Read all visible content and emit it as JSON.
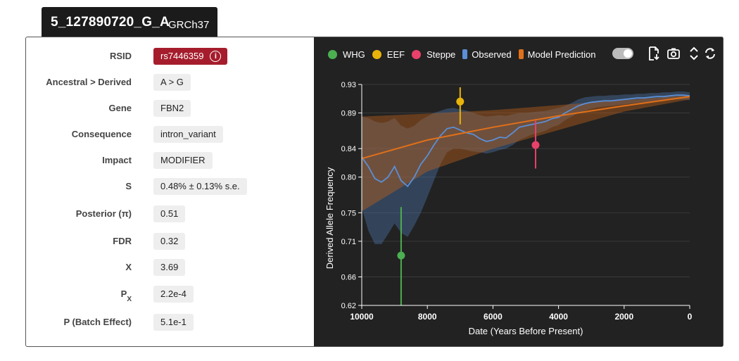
{
  "header": {
    "variant": "5_127890720_G_A",
    "build": "GRCh37"
  },
  "info": [
    {
      "label": "RSID",
      "value": "rs7446359"
    },
    {
      "label": "Ancestral > Derived",
      "value": "A > G"
    },
    {
      "label": "Gene",
      "value": "FBN2"
    },
    {
      "label": "Consequence",
      "value": "intron_variant"
    },
    {
      "label": "Impact",
      "value": "MODIFIER"
    },
    {
      "label": "S",
      "value": "0.48% ± 0.13% s.e."
    },
    {
      "label": "Posterior (π)",
      "value": "0.51"
    },
    {
      "label": "FDR",
      "value": "0.32"
    },
    {
      "label": "X",
      "value": "3.69"
    },
    {
      "label": "P",
      "label_sub": "X",
      "value": "2.2e-4"
    },
    {
      "label": "P (Batch Effect)",
      "value": "5.1e-1"
    }
  ],
  "info_icon": "info-circle-icon",
  "legend": [
    {
      "name": "WHG",
      "color": "#4caf50",
      "shape": "dot"
    },
    {
      "name": "EEF",
      "color": "#e8b40b",
      "shape": "dot"
    },
    {
      "name": "Steppe",
      "color": "#e8416a",
      "shape": "dot"
    },
    {
      "name": "Observed",
      "color": "#5b8fd6",
      "shape": "bar"
    },
    {
      "name": "Model Prediction",
      "color": "#e0701a",
      "shape": "bar"
    }
  ],
  "toolbar": [
    "download-data-icon",
    "camera-icon",
    "expand-vertical-icon",
    "refresh-icon"
  ],
  "chart_data": {
    "type": "line",
    "xlabel": "Date (Years Before Present)",
    "ylabel": "Derived Allele Frequency",
    "xlim": [
      10000,
      0
    ],
    "ylim": [
      0.62,
      0.93
    ],
    "xticks": [
      10000,
      8000,
      6000,
      4000,
      2000,
      0
    ],
    "xtick_labels": [
      "10000",
      "8000",
      "6000",
      "4000",
      "2000",
      "0"
    ],
    "yticks": [
      0.62,
      0.66,
      0.71,
      0.75,
      0.8,
      0.84,
      0.89,
      0.93
    ],
    "ytick_labels": [
      "0.62",
      "0.66",
      "0.71",
      "0.75",
      "0.80",
      "0.84",
      "0.89",
      "0.93"
    ],
    "observed": {
      "x": [
        10000,
        9800,
        9600,
        9400,
        9200,
        9000,
        8800,
        8600,
        8400,
        8200,
        8000,
        7800,
        7600,
        7400,
        7200,
        7000,
        6800,
        6600,
        6400,
        6200,
        6000,
        5800,
        5600,
        5400,
        5200,
        5000,
        4800,
        4600,
        4400,
        4200,
        4000,
        3800,
        3600,
        3400,
        3200,
        3000,
        2800,
        2600,
        2400,
        2200,
        2000,
        1800,
        1600,
        1400,
        1200,
        1000,
        800,
        600,
        400,
        200,
        0
      ],
      "y": [
        0.828,
        0.815,
        0.798,
        0.793,
        0.8,
        0.815,
        0.795,
        0.787,
        0.8,
        0.818,
        0.83,
        0.845,
        0.858,
        0.868,
        0.87,
        0.866,
        0.862,
        0.86,
        0.854,
        0.85,
        0.852,
        0.856,
        0.855,
        0.862,
        0.87,
        0.872,
        0.874,
        0.876,
        0.878,
        0.882,
        0.884,
        0.89,
        0.895,
        0.9,
        0.903,
        0.905,
        0.906,
        0.907,
        0.907,
        0.908,
        0.909,
        0.91,
        0.911,
        0.911,
        0.912,
        0.913,
        0.913,
        0.914,
        0.915,
        0.915,
        0.914
      ],
      "lower": [
        0.757,
        0.725,
        0.706,
        0.706,
        0.72,
        0.735,
        0.722,
        0.716,
        0.732,
        0.75,
        0.772,
        0.795,
        0.818,
        0.835,
        0.84,
        0.84,
        0.838,
        0.836,
        0.835,
        0.833,
        0.835,
        0.838,
        0.84,
        0.845,
        0.852,
        0.856,
        0.86,
        0.862,
        0.865,
        0.87,
        0.873,
        0.88,
        0.885,
        0.89,
        0.893,
        0.896,
        0.898,
        0.899,
        0.9,
        0.901,
        0.902,
        0.903,
        0.904,
        0.905,
        0.906,
        0.907,
        0.907,
        0.908,
        0.909,
        0.909,
        0.908
      ],
      "upper": [
        0.885,
        0.883,
        0.878,
        0.876,
        0.878,
        0.883,
        0.872,
        0.868,
        0.872,
        0.88,
        0.885,
        0.89,
        0.893,
        0.896,
        0.897,
        0.895,
        0.893,
        0.89,
        0.887,
        0.885,
        0.886,
        0.887,
        0.886,
        0.888,
        0.89,
        0.89,
        0.891,
        0.892,
        0.893,
        0.895,
        0.897,
        0.9,
        0.904,
        0.909,
        0.912,
        0.913,
        0.914,
        0.914,
        0.915,
        0.915,
        0.916,
        0.916,
        0.917,
        0.917,
        0.918,
        0.918,
        0.919,
        0.919,
        0.92,
        0.92,
        0.919
      ]
    },
    "model": {
      "x": [
        10000,
        8000,
        6000,
        4000,
        2000,
        0
      ],
      "y": [
        0.826,
        0.852,
        0.87,
        0.886,
        0.9,
        0.913
      ],
      "lower": [
        0.752,
        0.808,
        0.84,
        0.866,
        0.892,
        0.909
      ],
      "upper": [
        0.885,
        0.889,
        0.894,
        0.901,
        0.908,
        0.915
      ]
    },
    "points": [
      {
        "name": "WHG",
        "x": 8800,
        "y": 0.69,
        "ylow": 0.62,
        "yhigh": 0.758,
        "color": "#4caf50"
      },
      {
        "name": "EEF",
        "x": 7000,
        "y": 0.906,
        "ylow": 0.874,
        "yhigh": 0.926,
        "color": "#e8b40b"
      },
      {
        "name": "Steppe",
        "x": 4700,
        "y": 0.845,
        "ylow": 0.812,
        "yhigh": 0.879,
        "color": "#e8416a"
      }
    ]
  }
}
